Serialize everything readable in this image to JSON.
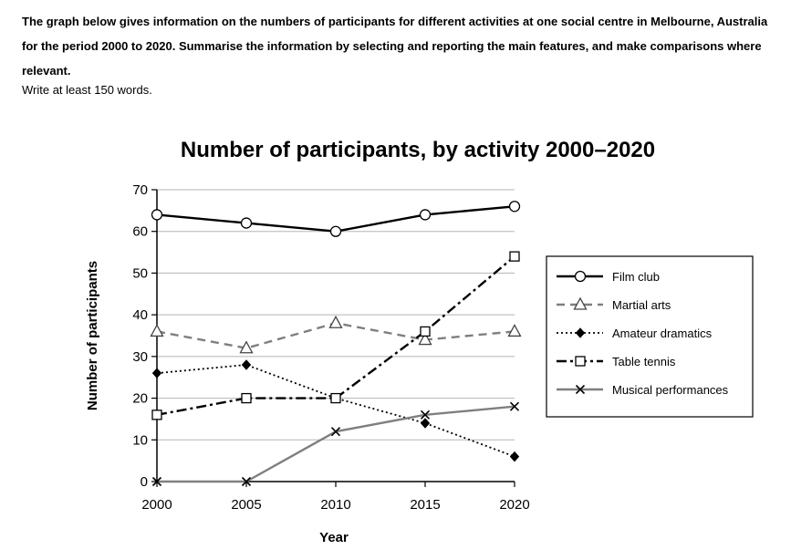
{
  "prompt": {
    "text": "The graph below gives information on the numbers of participants for different activities at one social centre in Melbourne, Australia for the period 2000 to 2020. Summarise the information by selecting and reporting the main features, and make comparisons where relevant.",
    "instruction": "Write at least 150 words."
  },
  "chart_data": {
    "type": "line",
    "title": "Number of participants, by activity 2000–2020",
    "xlabel": "Year",
    "ylabel": "Number of participants",
    "x": [
      2000,
      2005,
      2010,
      2015,
      2020
    ],
    "ylim": [
      0,
      70
    ],
    "yticks": [
      0,
      10,
      20,
      30,
      40,
      50,
      60,
      70
    ],
    "grid": "horizontal",
    "legend_position": "right",
    "series": [
      {
        "name": "Film club",
        "values": [
          64,
          62,
          60,
          64,
          66
        ],
        "color": "#000000",
        "dash": "solid",
        "marker": "circle"
      },
      {
        "name": "Martial arts",
        "values": [
          36,
          32,
          38,
          34,
          36
        ],
        "color": "#7f7f7f",
        "dash": "dashed",
        "marker": "triangle"
      },
      {
        "name": "Amateur dramatics",
        "values": [
          26,
          28,
          20,
          14,
          6
        ],
        "color": "#000000",
        "dash": "dotted",
        "marker": "diamond"
      },
      {
        "name": "Table tennis",
        "values": [
          16,
          20,
          20,
          36,
          54
        ],
        "color": "#000000",
        "dash": "dashdot",
        "marker": "square"
      },
      {
        "name": "Musical performances",
        "values": [
          0,
          0,
          12,
          16,
          18
        ],
        "color": "#7f7f7f",
        "dash": "solid",
        "marker": "x"
      }
    ]
  }
}
